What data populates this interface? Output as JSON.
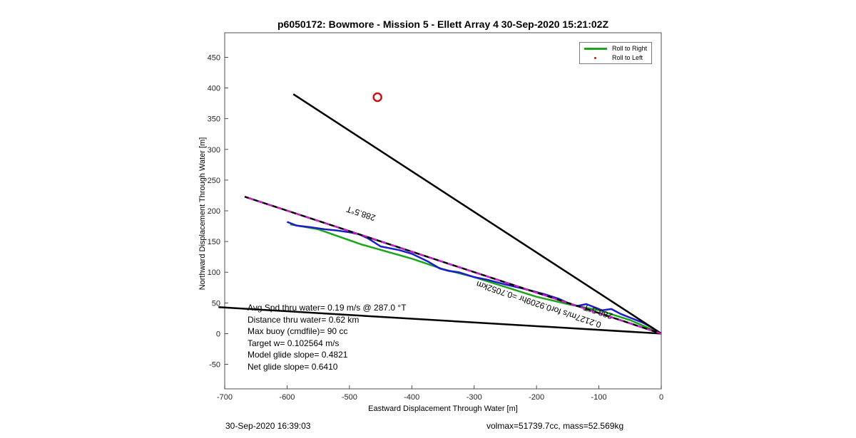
{
  "chart_data": {
    "type": "line",
    "title": "p6050172: Bowmore - Mission 5 - Ellett Array 4 30-Sep-2020 15:21:02Z",
    "xlabel": "Eastward Displacement Through Water [m]",
    "ylabel": "Northward Displacement Through Water [m]",
    "xlim": [
      -700,
      0
    ],
    "ylim": [
      -90,
      490
    ],
    "xticks": [
      -700,
      -600,
      -500,
      -400,
      -300,
      -200,
      -100,
      0
    ],
    "yticks": [
      -50,
      0,
      50,
      100,
      150,
      200,
      250,
      300,
      350,
      400,
      450
    ],
    "grid": false,
    "legend": {
      "placement": "top-right",
      "entries": [
        {
          "label": "Roll to Right",
          "color": "#1aa51a",
          "style": "line"
        },
        {
          "label": "Roll to Left",
          "color": "#d21414",
          "style": "dot"
        }
      ]
    },
    "series": [
      {
        "color": "#1aa51a",
        "style": "solid",
        "x": [
          -595,
          -550,
          -480,
          -400,
          -350,
          -300,
          -200,
          -150,
          -100,
          -50,
          0
        ],
        "y": [
          178,
          170,
          145,
          122,
          105,
          92,
          60,
          48,
          38,
          22,
          0
        ]
      },
      {
        "color": "#1c1cc8",
        "style": "solid",
        "x": [
          -600,
          -585,
          -560,
          -540,
          -520,
          -500,
          -485,
          -470,
          -450,
          -420,
          -400,
          -375,
          -355,
          -340,
          -325,
          -300,
          -280,
          -250,
          -220,
          -190,
          -165,
          -150,
          -135,
          -120,
          -105,
          -95,
          -80,
          -65,
          -50,
          -30,
          -15,
          0
        ],
        "y": [
          182,
          176,
          173,
          170,
          168,
          165,
          162,
          155,
          142,
          136,
          130,
          118,
          106,
          102,
          100,
          92,
          88,
          80,
          73,
          65,
          57,
          50,
          45,
          48,
          42,
          38,
          40,
          32,
          26,
          18,
          10,
          0
        ]
      },
      {
        "color": "#000000",
        "style": "solid",
        "x": [
          0,
          -590
        ],
        "y": [
          0,
          390
        ]
      },
      {
        "color": "#000000",
        "style": "solid",
        "x": [
          0,
          -710
        ],
        "y": [
          0,
          43
        ]
      },
      {
        "color": "#000000",
        "style": "solid",
        "x": [
          0,
          -668
        ],
        "y": [
          0,
          223
        ]
      },
      {
        "color": "#e614e6",
        "style": "dashed",
        "x": [
          0,
          -668
        ],
        "y": [
          0,
          223
        ]
      }
    ],
    "markers": [
      {
        "x": -455,
        "y": 385,
        "color": "#c81414",
        "shape": "circle"
      }
    ],
    "annotations": [
      {
        "text": "288.5°T",
        "x": -480,
        "y": 200,
        "angle_deg": 198.5
      },
      {
        "text": "0.2127m/s for0.9209hr =0.7052km",
        "x": -195,
        "y": 52,
        "angle_deg": 198.5
      },
      {
        "text": "288.5°T",
        "x": -100,
        "y": 40,
        "angle_deg": 198.5
      }
    ],
    "stats": [
      "Avg Spd thru water=  0.19 m/s @ 287.0 °T",
      "Distance thru water=  0.62 km",
      "Max buoy (cmdfile)= 90 cc",
      "Target w= 0.102564 m/s",
      "Model glide slope= 0.4821",
      "Net glide slope= 0.6410"
    ]
  },
  "footer": {
    "left": "30-Sep-2020 16:39:03",
    "right": "volmax=51739.7cc, mass=52.569kg"
  }
}
